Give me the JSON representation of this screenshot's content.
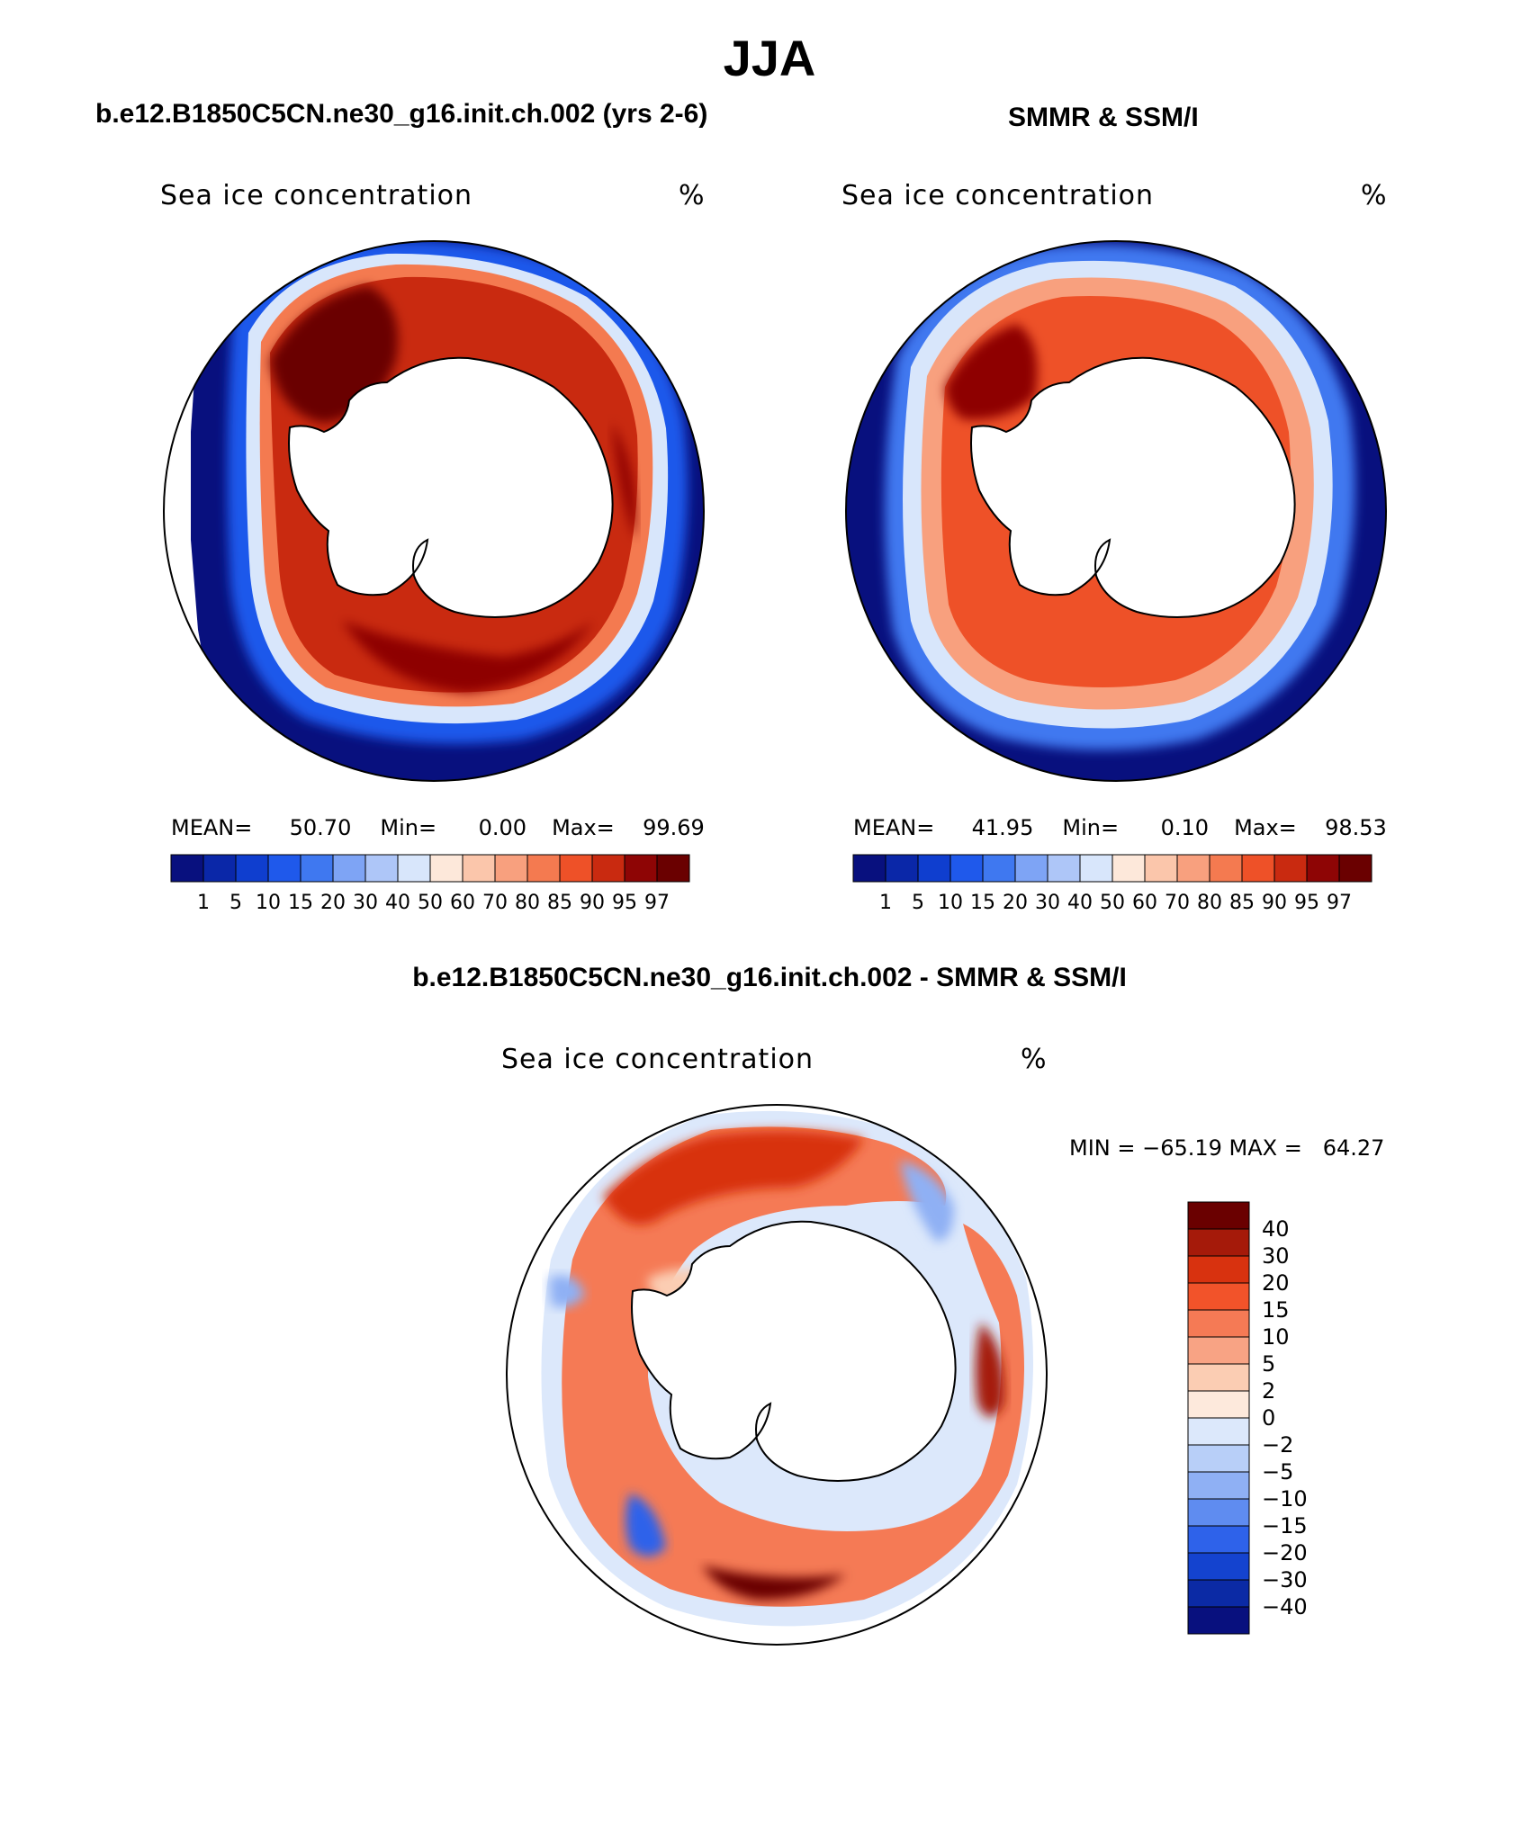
{
  "figure": {
    "title": "JJA"
  },
  "panels": {
    "model": {
      "title": "b.e12.B1850C5CN.ne30_g16.init.ch.002 (yrs 2-6)",
      "label": "Sea ice concentration",
      "units": "%",
      "mean_label": "MEAN=",
      "mean": "50.70",
      "min_label": "Min=",
      "min": "0.00",
      "max_label": "Max=",
      "max": "99.69"
    },
    "obs": {
      "title": "SMMR & SSM/I",
      "label": "Sea ice concentration",
      "units": "%",
      "mean_label": "MEAN=",
      "mean": "41.95",
      "min_label": "Min=",
      "min": "0.10",
      "max_label": "Max=",
      "max": "98.53"
    },
    "diff": {
      "title": "b.e12.B1850C5CN.ne30_g16.init.ch.002 - SMMR & SSM/I",
      "label": "Sea ice concentration",
      "units": "%",
      "minmax": "MIN = −65.19 MAX =   64.27"
    }
  },
  "legend_abs": {
    "levels": [
      "1",
      "5",
      "10",
      "15",
      "20",
      "30",
      "40",
      "50",
      "60",
      "70",
      "80",
      "85",
      "90",
      "95",
      "97"
    ],
    "colors": [
      "#08107e",
      "#0a27a8",
      "#0f3ecf",
      "#1f59eb",
      "#3f78f0",
      "#7ea4f5",
      "#aec6f8",
      "#d8e6fb",
      "#fde8da",
      "#fbc6ab",
      "#f8a07e",
      "#f47a50",
      "#ee5128",
      "#c92a10",
      "#8e0505",
      "#6a0000"
    ]
  },
  "legend_diff": {
    "levels": [
      "40",
      "30",
      "20",
      "15",
      "10",
      "5",
      "2",
      "0",
      "−2",
      "−5",
      "−10",
      "−15",
      "−20",
      "−30",
      "−40"
    ],
    "colors": [
      "#6a0000",
      "#a51a0a",
      "#d8320f",
      "#f2532a",
      "#f57a55",
      "#f8a384",
      "#fbcdb3",
      "#fde9dc",
      "#dce8fb",
      "#b8cff8",
      "#8fb0f4",
      "#5f8cf0",
      "#2e62ea",
      "#1443cf",
      "#0b2aa5",
      "#08107e"
    ]
  }
}
